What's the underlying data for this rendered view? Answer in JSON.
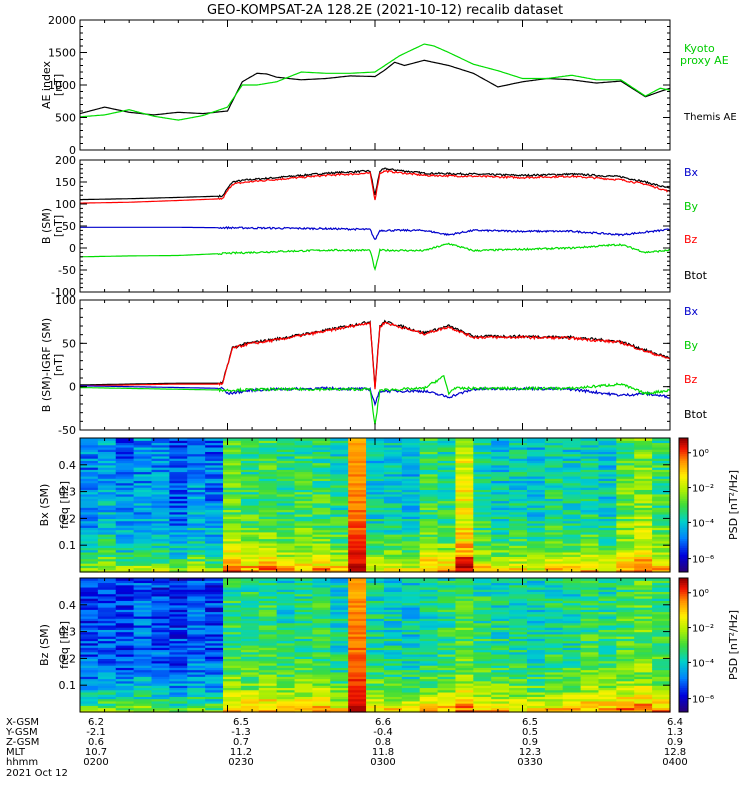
{
  "title": "GEO-KOMPSAT-2A 128.2E (2021-10-12) recalib dataset",
  "date_label": "2021 Oct 12",
  "ephemeris": {
    "row_labels": [
      "X-GSM",
      "Y-GSM",
      "Z-GSM",
      "MLT",
      "hhmm"
    ],
    "columns": [
      [
        "6.2",
        "-2.1",
        "0.6",
        "10.7",
        "0200"
      ],
      [
        "6.5",
        "-1.3",
        "0.7",
        "11.2",
        "0230"
      ],
      [
        "6.6",
        "-0.4",
        "0.8",
        "11.8",
        "0300"
      ],
      [
        "6.5",
        "0.5",
        "0.9",
        "12.3",
        "0330"
      ],
      [
        "6.4",
        "1.3",
        "0.9",
        "12.8",
        "0400"
      ]
    ]
  },
  "colors": {
    "black": "#000000",
    "red": "#ff0000",
    "green": "#00dd00",
    "blue": "#0000cc",
    "legend_green": "#00cc00"
  },
  "chart_data": [
    {
      "type": "line",
      "panel": "AE index",
      "ylabel": "AE index [nT]",
      "ylim": [
        0,
        2000
      ],
      "yticks": [
        "0",
        "500",
        "1000",
        "1500",
        "2000"
      ],
      "xlim": [
        0,
        120
      ],
      "x_unit": "minutes after 0200 UT",
      "legend": [
        "Kyoto proxy AE",
        "Themis AE"
      ],
      "series": [
        {
          "name": "Themis AE",
          "color": "black",
          "x": [
            0,
            5,
            10,
            15,
            20,
            25,
            30,
            33,
            36,
            38,
            40,
            45,
            50,
            55,
            60,
            62,
            64,
            66,
            70,
            75,
            80,
            85,
            90,
            95,
            100,
            105,
            110,
            115,
            118,
            120
          ],
          "y": [
            560,
            660,
            580,
            540,
            580,
            560,
            600,
            1050,
            1180,
            1170,
            1120,
            1080,
            1100,
            1140,
            1130,
            1230,
            1350,
            1300,
            1380,
            1300,
            1180,
            970,
            1050,
            1100,
            1080,
            1030,
            1060,
            820,
            900,
            950
          ]
        },
        {
          "name": "Kyoto proxy AE",
          "color": "green",
          "x": [
            0,
            5,
            10,
            15,
            20,
            25,
            30,
            33,
            36,
            40,
            45,
            50,
            55,
            60,
            65,
            70,
            72,
            75,
            80,
            85,
            90,
            95,
            100,
            105,
            110,
            115,
            118,
            120
          ],
          "y": [
            510,
            540,
            620,
            520,
            460,
            530,
            660,
            1000,
            1000,
            1050,
            1200,
            1180,
            1180,
            1200,
            1450,
            1630,
            1600,
            1500,
            1320,
            1220,
            1100,
            1100,
            1150,
            1080,
            1080,
            830,
            950,
            920
          ]
        }
      ]
    },
    {
      "type": "line",
      "panel": "B (SM)",
      "ylabel": "B (SM) [nT]",
      "ylim": [
        -100,
        200
      ],
      "yticks": [
        "-100",
        "-50",
        "0",
        "50",
        "100",
        "150",
        "200"
      ],
      "xlim": [
        0,
        120
      ],
      "legend": [
        "Bx",
        "By",
        "Bz",
        "Btot"
      ],
      "series": [
        {
          "name": "Btot",
          "color": "black",
          "x": [
            0,
            10,
            20,
            29,
            30,
            31,
            34,
            40,
            50,
            59,
            60,
            61,
            62,
            70,
            80,
            90,
            100,
            110,
            115,
            120
          ],
          "y": [
            110,
            112,
            115,
            118,
            135,
            150,
            155,
            160,
            170,
            175,
            120,
            175,
            180,
            170,
            168,
            165,
            168,
            162,
            150,
            135
          ]
        },
        {
          "name": "Bz",
          "color": "red",
          "x": [
            0,
            10,
            20,
            29,
            30,
            31,
            34,
            40,
            50,
            59,
            60,
            61,
            62,
            70,
            80,
            90,
            100,
            110,
            115,
            120
          ],
          "y": [
            102,
            104,
            108,
            112,
            130,
            145,
            150,
            156,
            165,
            170,
            110,
            170,
            175,
            165,
            163,
            160,
            163,
            155,
            145,
            128
          ]
        },
        {
          "name": "Bx",
          "color": "blue",
          "x": [
            0,
            10,
            20,
            30,
            40,
            50,
            59,
            60,
            61,
            70,
            75,
            80,
            90,
            100,
            110,
            120
          ],
          "y": [
            47,
            47,
            47,
            46,
            45,
            44,
            42,
            18,
            40,
            40,
            30,
            40,
            38,
            38,
            30,
            42
          ]
        },
        {
          "name": "By",
          "color": "green",
          "x": [
            0,
            10,
            20,
            30,
            40,
            50,
            59,
            60,
            61,
            70,
            75,
            80,
            90,
            100,
            110,
            115,
            120
          ],
          "y": [
            -20,
            -18,
            -17,
            -12,
            -8,
            -5,
            -5,
            -50,
            -5,
            -6,
            10,
            -6,
            -3,
            0,
            8,
            -10,
            -5
          ]
        }
      ]
    },
    {
      "type": "line",
      "panel": "B (SM)-IGRF (SM)",
      "ylabel": "B (SM)-IGRF (SM) [nT]",
      "ylim": [
        -50,
        100
      ],
      "yticks": [
        "-50",
        "0",
        "50",
        "100"
      ],
      "xlim": [
        0,
        120
      ],
      "legend": [
        "Bx",
        "By",
        "Bz",
        "Btot"
      ],
      "series": [
        {
          "name": "Btot",
          "color": "black",
          "x": [
            0,
            10,
            20,
            29,
            30,
            31,
            34,
            40,
            50,
            59,
            60,
            61,
            62,
            70,
            75,
            80,
            90,
            100,
            110,
            115,
            120
          ],
          "y": [
            2,
            3,
            4,
            4,
            25,
            45,
            50,
            55,
            65,
            75,
            0,
            70,
            75,
            62,
            70,
            58,
            58,
            57,
            52,
            42,
            33
          ]
        },
        {
          "name": "Bz",
          "color": "red",
          "x": [
            0,
            10,
            20,
            29,
            30,
            31,
            34,
            40,
            50,
            59,
            60,
            61,
            62,
            70,
            75,
            80,
            90,
            100,
            110,
            115,
            120
          ],
          "y": [
            1,
            2,
            3,
            3,
            24,
            44,
            49,
            54,
            64,
            74,
            -2,
            69,
            74,
            61,
            69,
            57,
            57,
            56,
            51,
            41,
            32
          ]
        },
        {
          "name": "Bx",
          "color": "blue",
          "x": [
            0,
            10,
            20,
            29,
            30,
            35,
            40,
            50,
            59,
            60,
            61,
            70,
            75,
            80,
            90,
            100,
            110,
            115,
            120
          ],
          "y": [
            1,
            0,
            -1,
            -2,
            -8,
            -4,
            -3,
            -2,
            -3,
            -20,
            -5,
            -5,
            -12,
            -3,
            -2,
            -3,
            -10,
            -8,
            -12
          ]
        },
        {
          "name": "By",
          "color": "green",
          "x": [
            0,
            10,
            20,
            30,
            40,
            50,
            59,
            60,
            61,
            70,
            74,
            75,
            76,
            80,
            90,
            100,
            110,
            115,
            120
          ],
          "y": [
            -1,
            -2,
            -3,
            -4,
            -3,
            -3,
            -3,
            -45,
            -4,
            -2,
            12,
            -8,
            -2,
            -2,
            -2,
            -2,
            3,
            -8,
            -4
          ]
        }
      ]
    },
    {
      "type": "heatmap",
      "panel": "Bx (SM) PSD",
      "ylabel": "Bx (SM) freq [Hz]",
      "yticks": [
        "0.1",
        "0.2",
        "0.3",
        "0.4"
      ],
      "ylim": [
        0,
        0.5
      ],
      "xlim": [
        0,
        120
      ],
      "colorbar": {
        "label": "PSD [nT²/Hz]",
        "ticks": [
          "10⁻⁶",
          "10⁻⁴",
          "10⁻²",
          "10⁰"
        ]
      },
      "column_levels": [
        0.3,
        0.35,
        0.28,
        0.32,
        0.3,
        0.25,
        0.33,
        0.28,
        0.55,
        0.5,
        0.52,
        0.48,
        0.5,
        0.5,
        0.45,
        0.95,
        0.4,
        0.42,
        0.38,
        0.5,
        0.48,
        0.7,
        0.45,
        0.4,
        0.42,
        0.38,
        0.45,
        0.42,
        0.45,
        0.4,
        0.55,
        0.6,
        0.5
      ]
    },
    {
      "type": "heatmap",
      "panel": "Bz (SM) PSD",
      "ylabel": "Bz (SM) freq [Hz]",
      "yticks": [
        "0.1",
        "0.2",
        "0.3",
        "0.4"
      ],
      "ylim": [
        0,
        0.5
      ],
      "xlim": [
        0,
        120
      ],
      "colorbar": {
        "label": "PSD [nT²/Hz]",
        "ticks": [
          "10⁻⁶",
          "10⁻⁴",
          "10⁻²",
          "10⁰"
        ]
      },
      "column_levels": [
        0.22,
        0.25,
        0.22,
        0.26,
        0.22,
        0.2,
        0.25,
        0.22,
        0.5,
        0.48,
        0.52,
        0.45,
        0.48,
        0.5,
        0.42,
        0.95,
        0.45,
        0.42,
        0.4,
        0.45,
        0.48,
        0.55,
        0.48,
        0.45,
        0.44,
        0.42,
        0.46,
        0.45,
        0.5,
        0.48,
        0.52,
        0.55,
        0.5
      ]
    }
  ]
}
